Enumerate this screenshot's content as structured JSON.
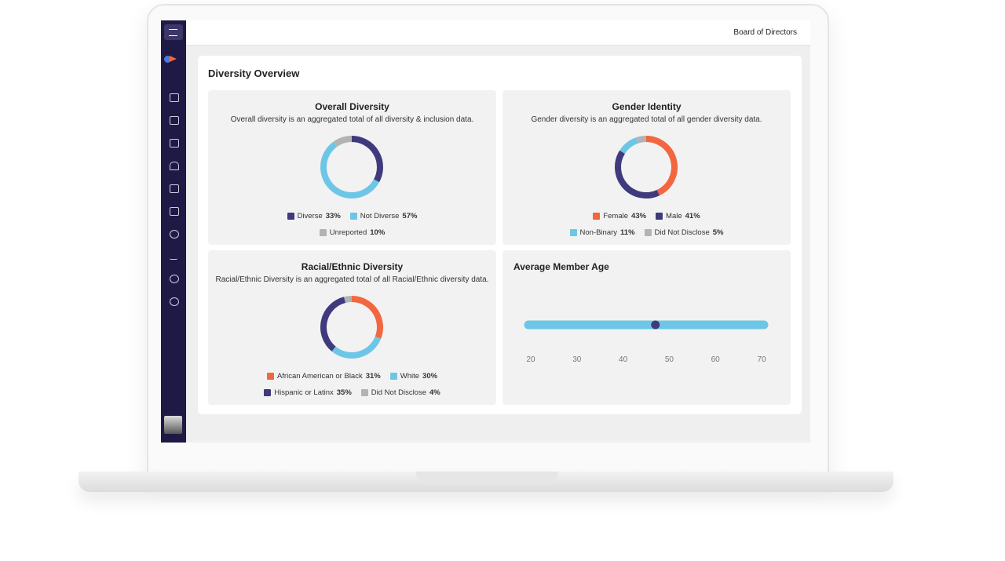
{
  "header": {
    "title": "Board of Directors"
  },
  "page_title": "Diversity Overview",
  "chart_data": [
    {
      "type": "pie",
      "title": "Overall Diversity",
      "subtitle": "Overall diversity is an aggregated total of all diversity & inclusion data.",
      "categories": [
        "Diverse",
        "Not Diverse",
        "Unreported"
      ],
      "values": [
        33,
        57,
        10
      ],
      "value_labels": [
        "33%",
        "57%",
        "10%"
      ],
      "colors": [
        "#3f3a7e",
        "#6ec6e6",
        "#b3b3b3"
      ]
    },
    {
      "type": "pie",
      "title": "Gender Identity",
      "subtitle": "Gender diversity is an aggregated total of all gender diversity data.",
      "categories": [
        "Female",
        "Male",
        "Non-Binary",
        "Did Not Disclose"
      ],
      "values": [
        43,
        41,
        11,
        5
      ],
      "value_labels": [
        "43%",
        "41%",
        "11%",
        "5%"
      ],
      "colors": [
        "#f26640",
        "#3f3a7e",
        "#6ec6e6",
        "#b3b3b3"
      ]
    },
    {
      "type": "pie",
      "title": "Racial/Ethnic Diversity",
      "subtitle": "Racial/Ethnic Diversity is an aggregated total of all Racial/Ethnic diversity data.",
      "categories": [
        "African American or Black",
        "White",
        "Hispanic or Latinx",
        "Did Not Disclose"
      ],
      "values": [
        31,
        30,
        35,
        4
      ],
      "value_labels": [
        "31%",
        "30%",
        "35%",
        "4%"
      ],
      "colors": [
        "#f26640",
        "#6ec6e6",
        "#3f3a7e",
        "#b3b3b3"
      ]
    },
    {
      "type": "dot",
      "title": "Average Member Age",
      "values": [
        47
      ],
      "xlim": [
        20,
        70
      ],
      "xticks": [
        20,
        30,
        40,
        50,
        60,
        70
      ],
      "color": "#3f3a7e",
      "track_color": "#6ec6e6"
    }
  ]
}
